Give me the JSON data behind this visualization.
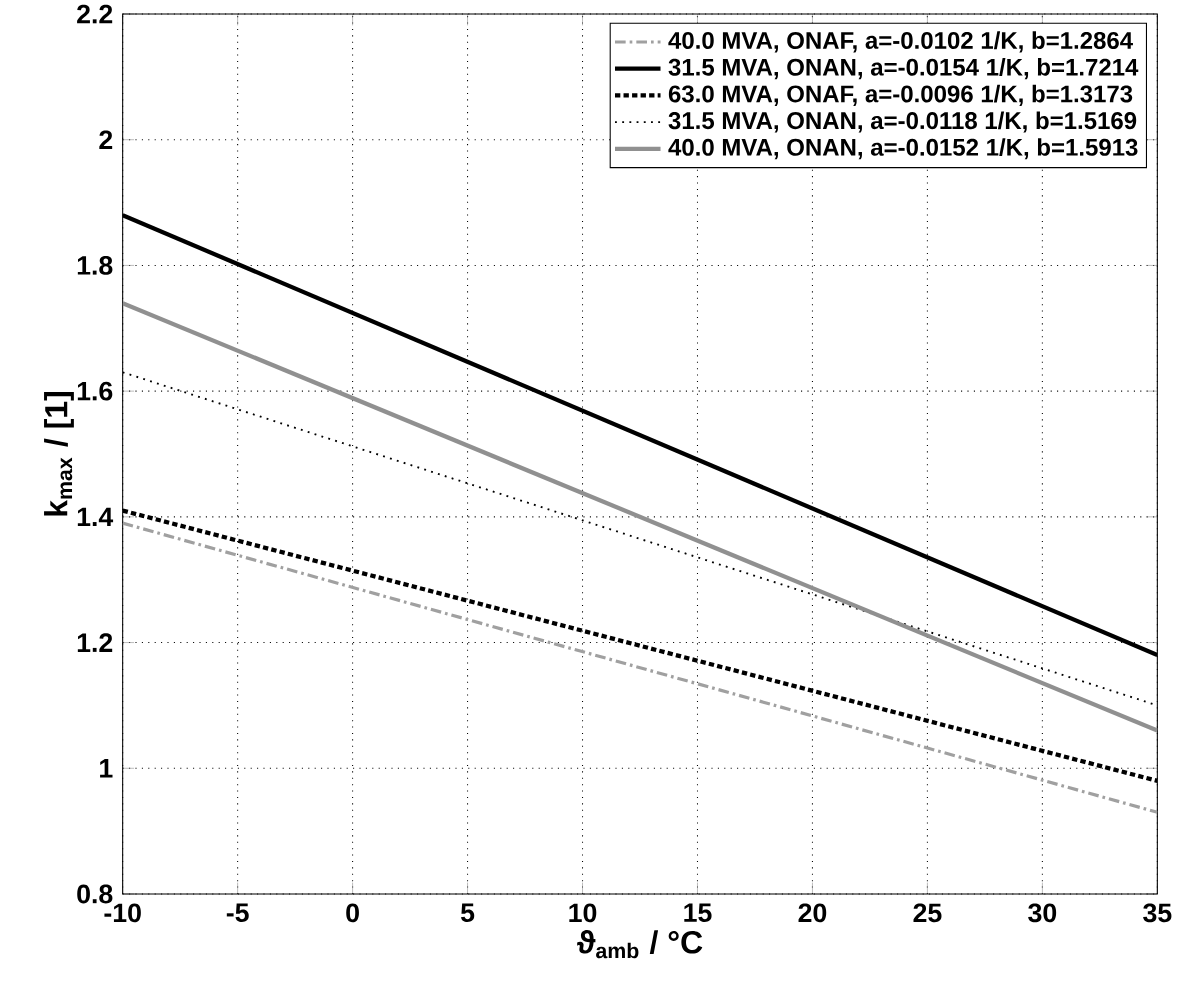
{
  "chart_data": {
    "type": "line",
    "xlabel": "ϑ$_{amb}$ / °C",
    "ylabel": "k$_{max}$ / [1]",
    "x": [
      -10,
      35
    ],
    "series": [
      {
        "name": "40.0 MVA, ONAF, a=-0.0102 1/K, b=1.2864",
        "color": "#a0a0a0",
        "line_style": "dashdot",
        "values": [
          1.39,
          0.93
        ]
      },
      {
        "name": "31.5 MVA, ONAN, a=-0.0154 1/K, b=1.7214",
        "color": "#000000",
        "line_style": "solid",
        "values": [
          1.88,
          1.18
        ]
      },
      {
        "name": "63.0 MVA, ONAF, a=-0.0096 1/K, b=1.3173",
        "color": "#000000",
        "line_style": "dashed",
        "values": [
          1.41,
          0.98
        ]
      },
      {
        "name": "31.5 MVA, ONAN, a=-0.0118 1/K, b=1.5169",
        "color": "#000000",
        "line_style": "dotted",
        "values": [
          1.63,
          1.1
        ]
      },
      {
        "name": "40.0 MVA, ONAN, a=-0.0152 1/K, b=1.5913",
        "color": "#909090",
        "line_style": "solid",
        "values": [
          1.74,
          1.06
        ]
      }
    ],
    "xlim": [
      -10,
      35
    ],
    "xticks": [
      -10,
      -5,
      0,
      5,
      10,
      15,
      20,
      25,
      30,
      35
    ],
    "ylim": [
      0.8,
      2.2
    ],
    "yticks": [
      0.8,
      1,
      1.2,
      1.4,
      1.6,
      1.8,
      2,
      2.2
    ],
    "grid": true,
    "legend": "top right",
    "marker": "none"
  }
}
